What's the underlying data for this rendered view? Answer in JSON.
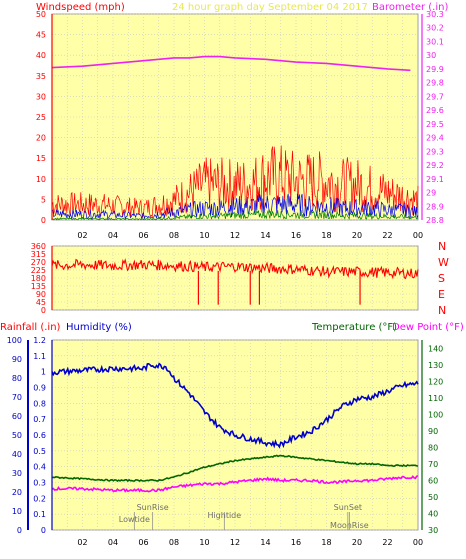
{
  "header": {
    "windspeed_label": "Windspeed (mph)",
    "title": "24 hour graph day   September 04 2017",
    "barometer_label": "Barometer (.in)"
  },
  "legend": {
    "rainfall_label": "Rainfall (.in)",
    "humidity_label": "Humidity (%)",
    "temperature_label": "Temperature (°F)",
    "dewpoint_label": "Dew Point (°F)"
  },
  "colors": {
    "plot_bg": "#ffffa8",
    "frame": "#a0a0a0",
    "grid": "#c8c8c8",
    "wind_speed": "#ff0000",
    "wind_avg": "#0000ee",
    "wind_low": "#008000",
    "barometer": "#ee22ee",
    "direction": "#ff0000",
    "humidity": "#0000cc",
    "temperature": "#006600",
    "dewpoint": "#ff00ff",
    "rain_axis": "#ff0000",
    "hum_axis": "#0000cc",
    "temp_axis": "#006600"
  },
  "chart_data": [
    {
      "type": "line",
      "name": "wind-barometer",
      "x_ticks": [
        "02",
        "04",
        "06",
        "08",
        "10",
        "12",
        "14",
        "16",
        "18",
        "20",
        "22",
        "00"
      ],
      "left_axis": {
        "label": "Windspeed (mph)",
        "ylim": [
          0,
          50
        ],
        "ticks": [
          0,
          5,
          10,
          15,
          20,
          25,
          30,
          35,
          40,
          45,
          50
        ]
      },
      "right_axis": {
        "label": "Barometer (.in)",
        "ylim": [
          28.8,
          30.3
        ],
        "ticks": [
          "28.8",
          "28.9",
          "29",
          "29.1",
          "29.2",
          "29.3",
          "29.4",
          "29.5",
          "29.6",
          "29.7",
          "29.8",
          "29.9",
          "30",
          "30.1",
          "30.2",
          "30.3"
        ]
      },
      "grid": true,
      "series": [
        {
          "name": "Barometer (.in)",
          "axis": "right",
          "x": [
            0,
            2,
            4,
            6,
            8,
            9,
            10,
            11,
            12,
            14,
            16,
            18,
            20,
            22,
            23.5
          ],
          "y": [
            29.91,
            29.92,
            29.94,
            29.96,
            29.98,
            29.98,
            29.99,
            29.99,
            29.98,
            29.97,
            29.95,
            29.94,
            29.92,
            29.9,
            29.89
          ]
        },
        {
          "axis": "left",
          "x": [
            0,
            3,
            6,
            7,
            8,
            9,
            10,
            11,
            12,
            13,
            14,
            15,
            16,
            17,
            18,
            19,
            20,
            21,
            22,
            23,
            23.9
          ],
          "y": [
            4,
            4,
            3,
            4,
            5,
            7,
            9,
            9,
            9,
            9,
            11,
            11,
            10,
            10,
            10,
            9,
            9,
            8,
            7,
            6,
            5
          ]
        },
        {
          "axis": "left",
          "x": [
            0,
            3,
            6,
            7,
            8,
            9,
            10,
            11,
            12,
            13,
            14,
            15,
            16,
            17,
            18,
            19,
            20,
            21,
            22,
            23,
            23.9
          ],
          "y": [
            1.5,
            1.5,
            1,
            1.5,
            2,
            2.5,
            3,
            3,
            3.5,
            3.5,
            4,
            4,
            4,
            3.5,
            3.5,
            3,
            3,
            3,
            2.5,
            2.5,
            2
          ]
        },
        {
          "axis": "left",
          "x": [
            0,
            3,
            6,
            7,
            8,
            9,
            10,
            11,
            12,
            13,
            14,
            15,
            16,
            17,
            18,
            19,
            20,
            21,
            22,
            23,
            23.9
          ],
          "y": [
            0.3,
            0.3,
            0.2,
            0.3,
            0.6,
            0.8,
            1,
            1,
            1.2,
            1.2,
            1.5,
            1.5,
            1.4,
            1.3,
            1.3,
            1.2,
            1.1,
            1,
            0.9,
            0.8,
            0.7
          ]
        }
      ]
    },
    {
      "type": "line",
      "name": "wind-direction",
      "ylim": [
        0,
        360
      ],
      "y_ticks": [
        0,
        45,
        90,
        135,
        180,
        225,
        270,
        315,
        360
      ],
      "compass": [
        "N",
        "W",
        "S",
        "E",
        "N"
      ],
      "series": [
        {
          "axis": "left",
          "x": [
            0,
            2,
            4,
            6,
            8,
            10,
            12,
            14,
            16,
            18,
            20,
            22,
            23.9
          ],
          "y": [
            250,
            255,
            250,
            255,
            250,
            240,
            245,
            235,
            230,
            215,
            215,
            210,
            205
          ]
        }
      ]
    },
    {
      "type": "line",
      "name": "temp-humidity",
      "x_ticks": [
        "02",
        "04",
        "06",
        "08",
        "10",
        "12",
        "14",
        "16",
        "18",
        "20",
        "22",
        "00"
      ],
      "rain_axis": {
        "label": "Rainfall (.in)",
        "ylim": [
          0,
          1.2
        ],
        "ticks": [
          "0",
          "0.1",
          "0.2",
          "0.3",
          "0.4",
          "0.5",
          "0.6",
          "0.7",
          "0.8",
          "0.9",
          "1",
          "1.1",
          "1.2"
        ]
      },
      "humidity_axis": {
        "label": "Humidity (%)",
        "ylim": [
          0,
          100
        ],
        "ticks": [
          0,
          10,
          20,
          30,
          40,
          50,
          60,
          70,
          80,
          90,
          100
        ]
      },
      "temp_axis": {
        "label": "Temperature (°F)",
        "ylim": [
          30,
          145
        ],
        "ticks": [
          30,
          40,
          50,
          60,
          70,
          80,
          90,
          100,
          110,
          120,
          130,
          140
        ]
      },
      "series": [
        {
          "name": "Humidity (%)",
          "axis": "humidity",
          "x": [
            0,
            2,
            4,
            6,
            6.5,
            7.5,
            8,
            9,
            10,
            11,
            12,
            13,
            14,
            15,
            15.5,
            16,
            17,
            18,
            19,
            20,
            21,
            22,
            23,
            23.9
          ],
          "y": [
            83,
            84,
            85,
            85,
            87,
            86,
            80,
            72,
            62,
            54,
            50,
            48,
            46,
            45,
            47,
            49,
            52,
            58,
            65,
            69,
            70,
            73,
            76,
            77
          ]
        },
        {
          "name": "Temperature (°F)",
          "axis": "temp",
          "x": [
            0,
            2,
            4,
            6,
            7,
            8,
            9,
            10,
            11,
            12,
            13,
            14,
            15,
            16,
            17,
            18,
            19,
            20,
            21,
            22,
            23,
            23.9
          ],
          "y": [
            62,
            61,
            60,
            60,
            60,
            62,
            65,
            68,
            70,
            72,
            73,
            74,
            75,
            74,
            73,
            72,
            71,
            70,
            70,
            69,
            69,
            69
          ]
        },
        {
          "name": "Dew Point (°F)",
          "axis": "temp",
          "x": [
            0,
            2,
            4,
            6,
            7,
            8,
            9,
            10,
            11,
            12,
            13,
            14,
            15,
            16,
            17,
            18,
            19,
            20,
            21,
            22,
            23,
            23.9
          ],
          "y": [
            55,
            55,
            54,
            54,
            54,
            56,
            57,
            58,
            58,
            59,
            60,
            61,
            60,
            60,
            60,
            59,
            59,
            60,
            60,
            61,
            62,
            62
          ]
        }
      ],
      "annotations": [
        {
          "label": "SunRise",
          "x": 6.6
        },
        {
          "label": "Lowtide",
          "x": 5.4
        },
        {
          "label": "Hightide",
          "x": 11.3
        },
        {
          "label": "SunSet",
          "x": 19.4
        },
        {
          "label": "MoonRise",
          "x": 19.5
        }
      ]
    }
  ]
}
